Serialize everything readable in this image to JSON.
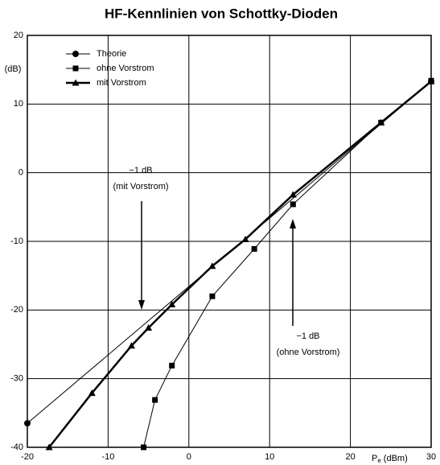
{
  "chart_data": {
    "type": "line",
    "title": "HF-Kennlinien von Schottky-Dioden",
    "y_label": "(dB)",
    "x_label": {
      "main": "P",
      "sub": "e",
      "unit": "(dBm)"
    },
    "xlim": [
      -20,
      30
    ],
    "xticks": [
      -20,
      -10,
      0,
      10,
      20,
      30
    ],
    "ylim": [
      -40,
      20
    ],
    "yticks": [
      -40,
      -30,
      -20,
      -10,
      0,
      10,
      20
    ],
    "grid": true,
    "legend": "upper left",
    "series": [
      {
        "name": "Theorie",
        "color": "#000000",
        "marker": "circle",
        "line_width": 1,
        "x": [
          -20,
          30
        ],
        "values": [
          -36.5,
          13.3
        ]
      },
      {
        "name": "ohne Vorstrom",
        "color": "#000000",
        "marker": "square",
        "line_width": 1,
        "x": [
          -5.6,
          -4.2,
          -2.1,
          2.9,
          8.1,
          12.9,
          23.8,
          30
        ],
        "values": [
          -40,
          -33.1,
          -28.1,
          -18,
          -11.1,
          -4.6,
          7.3,
          13.4
        ]
      },
      {
        "name": "mit Vorstrom",
        "color": "#000000",
        "marker": "triangle",
        "line_width": 2.5,
        "x": [
          -17.3,
          -12,
          -7.1,
          -5,
          -2.1,
          2.9,
          7,
          12.9,
          23.8,
          30
        ],
        "values": [
          -40,
          -32.1,
          -25.2,
          -22.6,
          -19.2,
          -13.6,
          -9.7,
          -3.2,
          7.3,
          13.3
        ]
      }
    ],
    "annotations": [
      [
        "−1 dB",
        "(mit Vorstrom)"
      ],
      [
        "−1 dB",
        "(ohne Vorstrom)"
      ]
    ]
  }
}
